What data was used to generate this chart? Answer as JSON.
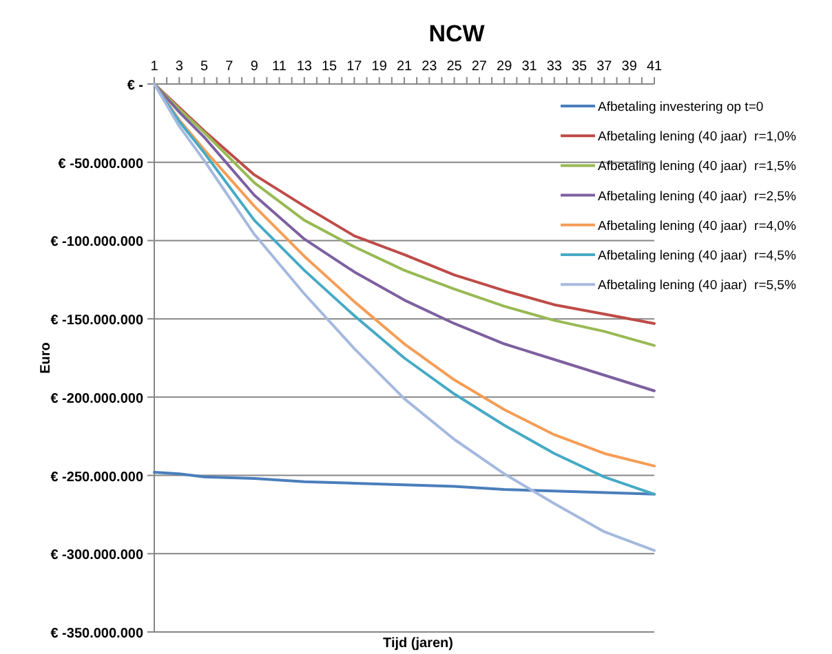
{
  "chart_data": {
    "type": "line",
    "title": "NCW",
    "xlabel": "Tijd (jaren)",
    "ylabel": "Euro",
    "xlim": [
      1,
      41
    ],
    "xticks": [
      1,
      {
        "value": 2,
        "label": null
      },
      3,
      {
        "value": 4,
        "label": null
      },
      5,
      {
        "value": 6,
        "label": null
      },
      7,
      {
        "value": 8,
        "label": null
      },
      9,
      {
        "value": 10,
        "label": null
      },
      11,
      {
        "value": 12,
        "label": null
      },
      13,
      {
        "value": 14,
        "label": null
      },
      15,
      {
        "value": 16,
        "label": null
      },
      17,
      {
        "value": 18,
        "label": null
      },
      19,
      {
        "value": 20,
        "label": null
      },
      21,
      {
        "value": 22,
        "label": null
      },
      23,
      {
        "value": 24,
        "label": null
      },
      25,
      {
        "value": 26,
        "label": null
      },
      27,
      {
        "value": 28,
        "label": null
      },
      29,
      {
        "value": 30,
        "label": null
      },
      31,
      {
        "value": 32,
        "label": null
      },
      33,
      {
        "value": 34,
        "label": null
      },
      35,
      {
        "value": 36,
        "label": null
      },
      37,
      {
        "value": 38,
        "label": null
      },
      39,
      {
        "value": 40,
        "label": null
      },
      41
    ],
    "ylim": [
      -350000000,
      0
    ],
    "yticks": [
      {
        "value": 0,
        "label": "€ -"
      },
      {
        "value": -50000000,
        "label": "€ -50.000.000"
      },
      {
        "value": -100000000,
        "label": "€ -100.000.000"
      },
      {
        "value": -150000000,
        "label": "€ -150.000.000"
      },
      {
        "value": -200000000,
        "label": "€ -200.000.000"
      },
      {
        "value": -250000000,
        "label": "€ -250.000.000"
      },
      {
        "value": -300000000,
        "label": "€ -300.000.000"
      },
      {
        "value": -350000000,
        "label": "€ -350.000.000"
      }
    ],
    "grid": "y",
    "legend": "right",
    "marker": "none",
    "line_style": "solid",
    "x": [
      1,
      3,
      5,
      9,
      13,
      17,
      21,
      25,
      29,
      33,
      37,
      41
    ],
    "series": [
      {
        "name": "Afbetaling investering op t=0",
        "color": "#4a7ebb",
        "values": [
          -248000000,
          -249000000,
          -251000000,
          -252000000,
          -254000000,
          -255000000,
          -256000000,
          -257000000,
          -259000000,
          -260000000,
          -261000000,
          -262000000
        ]
      },
      {
        "name": "Afbetaling lening (40 jaar)  r=1,0%",
        "color": "#be4b48",
        "values": [
          0,
          -15000000,
          -30000000,
          -58000000,
          -78000000,
          -97000000,
          -109000000,
          -122000000,
          -132000000,
          -141000000,
          -147000000,
          -153000000
        ]
      },
      {
        "name": "Afbetaling lening (40 jaar)  r=1,5%",
        "color": "#98b954",
        "values": [
          0,
          -16000000,
          -31000000,
          -63000000,
          -87000000,
          -104000000,
          -119000000,
          -131000000,
          -142000000,
          -151000000,
          -158000000,
          -167000000
        ]
      },
      {
        "name": "Afbetaling lening (40 jaar)  r=2,5%",
        "color": "#7d60a0",
        "values": [
          0,
          -18000000,
          -34000000,
          -71000000,
          -99000000,
          -120000000,
          -138000000,
          -153000000,
          -166000000,
          -176000000,
          -186000000,
          -196000000
        ]
      },
      {
        "name": "Afbetaling lening (40 jaar)  r=4,0%",
        "color": "#f59d56",
        "values": [
          0,
          -23000000,
          -42000000,
          -78000000,
          -110000000,
          -139000000,
          -166000000,
          -189000000,
          -208000000,
          -224000000,
          -236000000,
          -244000000
        ]
      },
      {
        "name": "Afbetaling lening (40 jaar)  r=4,5%",
        "color": "#46aac5",
        "values": [
          0,
          -24000000,
          -44000000,
          -87000000,
          -119000000,
          -148000000,
          -175000000,
          -198000000,
          -218000000,
          -236000000,
          -251000000,
          -262000000
        ]
      },
      {
        "name": "Afbetaling lening (40 jaar)  r=5,5%",
        "color": "#a5b9de",
        "values": [
          0,
          -27000000,
          -49000000,
          -96000000,
          -134000000,
          -169000000,
          -201000000,
          -227000000,
          -249000000,
          -268000000,
          -286000000,
          -298000000
        ]
      }
    ]
  }
}
